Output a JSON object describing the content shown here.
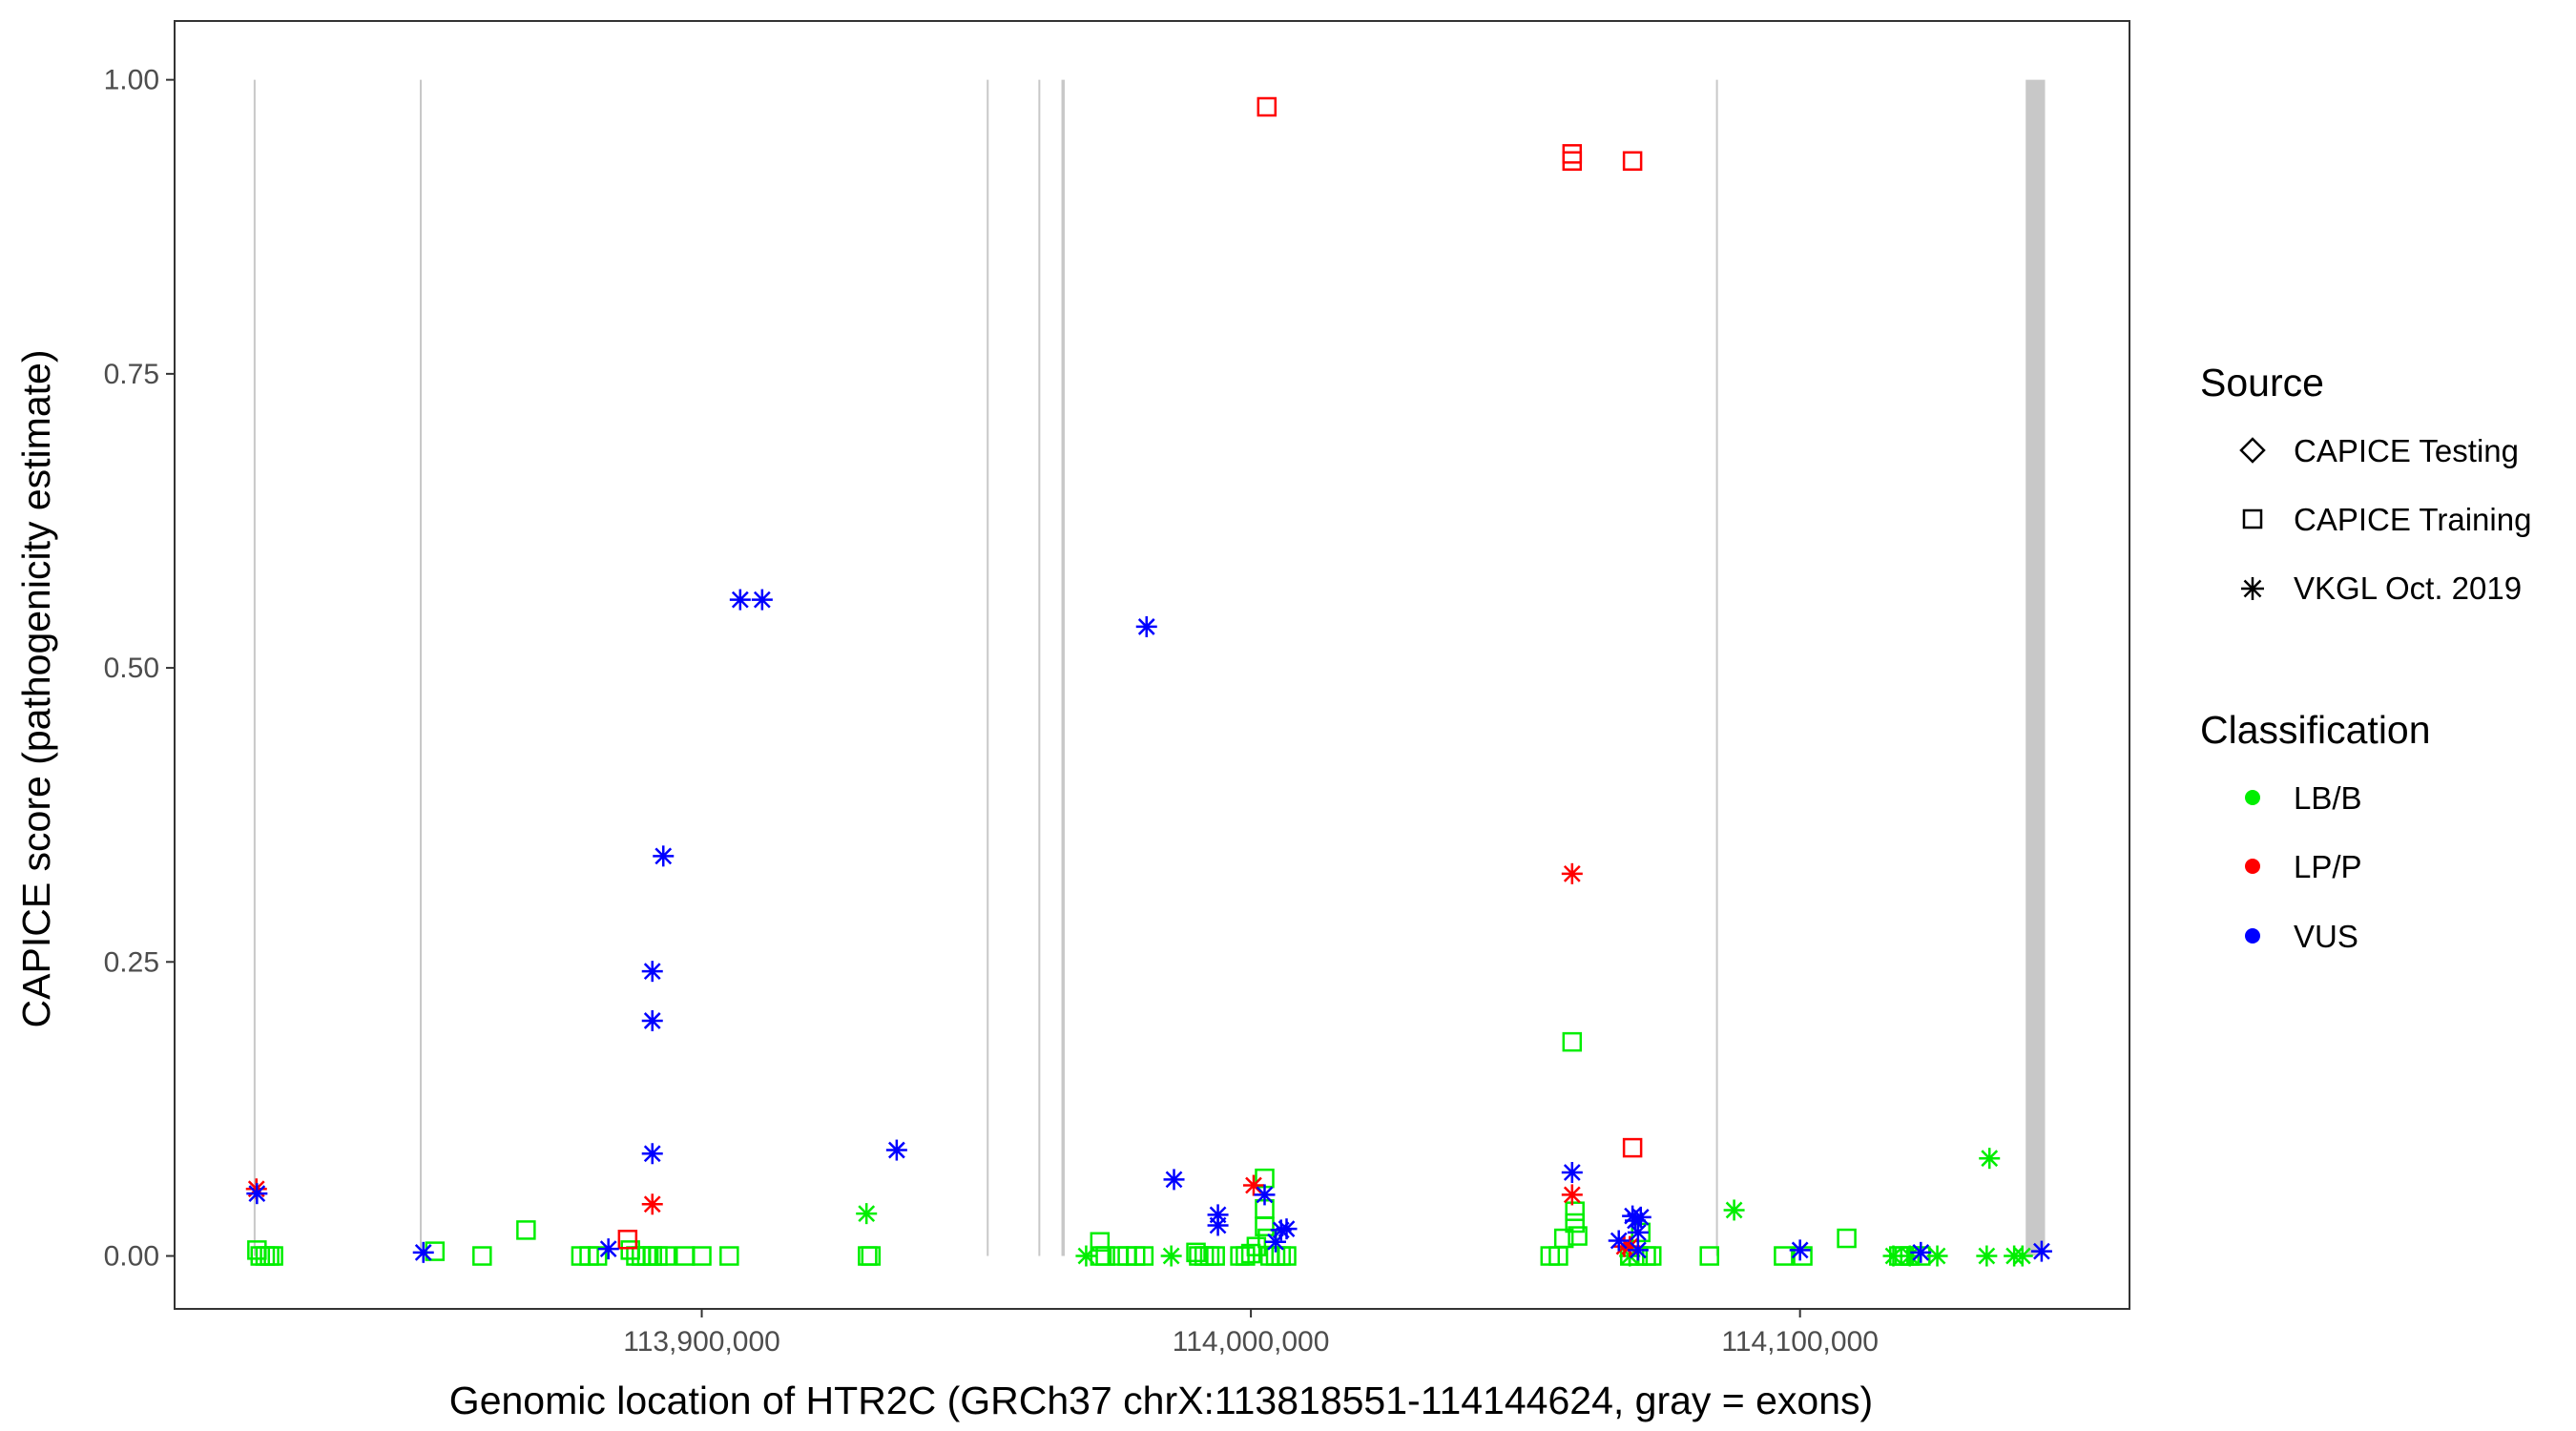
{
  "chart_data": {
    "type": "scatter",
    "title": "",
    "xlabel": "Genomic location of HTR2C (GRCh37 chrX:113818551-114144624, gray = exons)",
    "ylabel": "CAPICE score (pathogenicity estimate)",
    "xlim": [
      113804000,
      114160000
    ],
    "ylim": [
      -0.045,
      1.05
    ],
    "x_ticks": [
      {
        "value": 113900000,
        "label": "113,900,000"
      },
      {
        "value": 114000000,
        "label": "114,000,000"
      },
      {
        "value": 114100000,
        "label": "114,100,000"
      }
    ],
    "y_ticks": [
      {
        "value": 0.0,
        "label": "0.00"
      },
      {
        "value": 0.25,
        "label": "0.25"
      },
      {
        "value": 0.5,
        "label": "0.50"
      },
      {
        "value": 0.75,
        "label": "0.75"
      },
      {
        "value": 1.0,
        "label": "1.00"
      }
    ],
    "grid": false,
    "legend_placement": "right",
    "exons": [
      {
        "start": 113818400,
        "end": 113818700
      },
      {
        "start": 113848650,
        "end": 113848850
      },
      {
        "start": 113951900,
        "end": 113952100
      },
      {
        "start": 113961300,
        "end": 113961500
      },
      {
        "start": 113965500,
        "end": 113966100
      },
      {
        "start": 114084700,
        "end": 114084900
      },
      {
        "start": 114141100,
        "end": 114144624
      }
    ],
    "exon_color": "#c8c8c8",
    "legend": {
      "source_title": "Source",
      "source_items": [
        {
          "label": "CAPICE Testing",
          "shape": "diamond"
        },
        {
          "label": "CAPICE Training",
          "shape": "square"
        },
        {
          "label": "VKGL Oct. 2019",
          "shape": "asterisk"
        }
      ],
      "class_title": "Classification",
      "class_items": [
        {
          "label": "LB/B",
          "color": "#00ee00"
        },
        {
          "label": "LP/P",
          "color": "#ff0000"
        },
        {
          "label": "VUS",
          "color": "#0000ff"
        }
      ]
    },
    "series": [
      {
        "name": "LB/B",
        "source": "CAPICE Training",
        "shape": "square",
        "color": "#00ee00",
        "points": [
          [
            113819000,
            0.005
          ],
          [
            113819600,
            0.0
          ],
          [
            113820500,
            0.0
          ],
          [
            113821300,
            0.0
          ],
          [
            113822000,
            0.0
          ],
          [
            113851400,
            0.004
          ],
          [
            113860000,
            0.0
          ],
          [
            113868000,
            0.022
          ],
          [
            113878000,
            0.0
          ],
          [
            113879500,
            0.0
          ],
          [
            113881000,
            0.0
          ],
          [
            113887000,
            0.005
          ],
          [
            113888000,
            0.0
          ],
          [
            113889000,
            0.0
          ],
          [
            113890000,
            0.0
          ],
          [
            113891000,
            0.0
          ],
          [
            113892000,
            0.0
          ],
          [
            113893500,
            0.0
          ],
          [
            113897000,
            0.0
          ],
          [
            113900000,
            0.0
          ],
          [
            113905000,
            0.0
          ],
          [
            113930200,
            0.0
          ],
          [
            113930800,
            0.0
          ],
          [
            113972500,
            0.012
          ],
          [
            113972500,
            0.0
          ],
          [
            113973500,
            0.0
          ],
          [
            113976000,
            0.0
          ],
          [
            113977500,
            0.0
          ],
          [
            113979000,
            0.0
          ],
          [
            113980500,
            0.0
          ],
          [
            113990000,
            0.003
          ],
          [
            113990500,
            0.0
          ],
          [
            113991500,
            0.0
          ],
          [
            113992500,
            0.0
          ],
          [
            113993500,
            0.0
          ],
          [
            113998000,
            0.0
          ],
          [
            113999000,
            0.0
          ],
          [
            114000000,
            0.002
          ],
          [
            114001000,
            0.008
          ],
          [
            114002500,
            0.066
          ],
          [
            114002500,
            0.04
          ],
          [
            114002500,
            0.025
          ],
          [
            114003000,
            0.015
          ],
          [
            114003500,
            0.0
          ],
          [
            114004500,
            0.0
          ],
          [
            114005500,
            0.0
          ],
          [
            114006500,
            0.0
          ],
          [
            114054500,
            0.0
          ],
          [
            114056000,
            0.0
          ],
          [
            114057000,
            0.015
          ],
          [
            114058500,
            0.182
          ],
          [
            114059000,
            0.038
          ],
          [
            114059000,
            0.028
          ],
          [
            114059500,
            0.017
          ],
          [
            114069000,
            0.0
          ],
          [
            114070500,
            0.0
          ],
          [
            114071000,
            0.02
          ],
          [
            114072000,
            0.0
          ],
          [
            114073000,
            0.0
          ],
          [
            114083500,
            0.0
          ],
          [
            114097000,
            0.0
          ],
          [
            114100500,
            0.0
          ],
          [
            114108500,
            0.015
          ],
          [
            114118000,
            0.0
          ],
          [
            114119000,
            0.0
          ],
          [
            114120000,
            0.0
          ],
          [
            114122000,
            0.0
          ]
        ]
      },
      {
        "name": "LP/P",
        "source": "CAPICE Training",
        "shape": "square",
        "color": "#ff0000",
        "points": [
          [
            113886500,
            0.014
          ],
          [
            114002900,
            0.977
          ],
          [
            114058500,
            0.937
          ],
          [
            114058500,
            0.931
          ],
          [
            114069500,
            0.931
          ],
          [
            114069500,
            0.092
          ]
        ]
      },
      {
        "name": "LB/B",
        "source": "VKGL Oct. 2019",
        "shape": "asterisk",
        "color": "#00ee00",
        "points": [
          [
            113930000,
            0.036
          ],
          [
            113970000,
            0.0
          ],
          [
            113985500,
            0.0
          ],
          [
            114069000,
            0.0
          ],
          [
            114088000,
            0.039
          ],
          [
            114117000,
            0.0
          ],
          [
            114120000,
            0.0
          ],
          [
            114125000,
            0.0
          ],
          [
            114134000,
            0.0
          ],
          [
            114134500,
            0.083
          ],
          [
            114139000,
            0.0
          ],
          [
            114140500,
            0.0
          ]
        ]
      },
      {
        "name": "LP/P",
        "source": "VKGL Oct. 2019",
        "shape": "asterisk",
        "color": "#ff0000",
        "points": [
          [
            113818900,
            0.057
          ],
          [
            113891000,
            0.044
          ],
          [
            114000500,
            0.06
          ],
          [
            114058500,
            0.325
          ],
          [
            114058500,
            0.052
          ],
          [
            114068000,
            0.008
          ],
          [
            114069000,
            0.008
          ]
        ]
      },
      {
        "name": "VUS",
        "source": "VKGL Oct. 2019",
        "shape": "asterisk",
        "color": "#0000ff",
        "points": [
          [
            113819000,
            0.053
          ],
          [
            113849300,
            0.003
          ],
          [
            113883000,
            0.006
          ],
          [
            113891000,
            0.242
          ],
          [
            113891000,
            0.2
          ],
          [
            113891000,
            0.087
          ],
          [
            113893000,
            0.34
          ],
          [
            113907000,
            0.558
          ],
          [
            113911000,
            0.558
          ],
          [
            113935500,
            0.09
          ],
          [
            113981000,
            0.535
          ],
          [
            113986000,
            0.065
          ],
          [
            113994000,
            0.035
          ],
          [
            113994000,
            0.026
          ],
          [
            114002500,
            0.052
          ],
          [
            114004500,
            0.012
          ],
          [
            114005500,
            0.022
          ],
          [
            114006500,
            0.023
          ],
          [
            114058500,
            0.071
          ],
          [
            114067000,
            0.013
          ],
          [
            114069500,
            0.034
          ],
          [
            114070000,
            0.03
          ],
          [
            114070500,
            0.02
          ],
          [
            114071000,
            0.033
          ],
          [
            114070500,
            0.005
          ],
          [
            114100000,
            0.005
          ],
          [
            114122000,
            0.003
          ],
          [
            114144000,
            0.004
          ]
        ]
      }
    ]
  }
}
